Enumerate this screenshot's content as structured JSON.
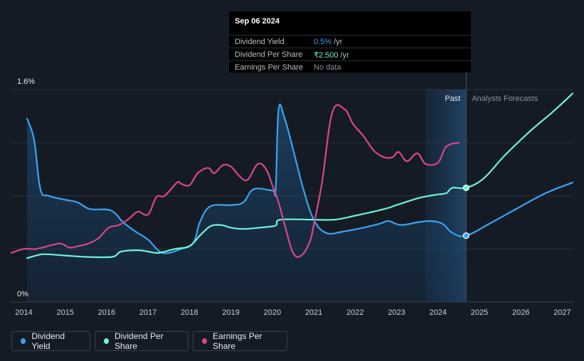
{
  "tooltip": {
    "date": "Sep 06 2024",
    "rows": [
      {
        "label": "Dividend Yield",
        "value": "0.5%",
        "unit": "/yr",
        "color": "#3ba2ef"
      },
      {
        "label": "Dividend Per Share",
        "value": "₹2.500",
        "unit": "/yr",
        "color": "#6ff2d6"
      },
      {
        "label": "Earnings Per Share",
        "value": "No data",
        "unit": "",
        "color": "#8a8f98"
      }
    ]
  },
  "zones": {
    "past": "Past",
    "forecast": "Analysts Forecasts"
  },
  "legend": [
    {
      "label": "Dividend Yield",
      "color": "#3ba2ef"
    },
    {
      "label": "Dividend Per Share",
      "color": "#6ff2d6"
    },
    {
      "label": "Earnings Per Share",
      "color": "#d9468a"
    }
  ],
  "chart_data": {
    "type": "line",
    "x_ticks": [
      "2014",
      "2015",
      "2016",
      "2017",
      "2018",
      "2019",
      "2020",
      "2021",
      "2022",
      "2023",
      "2024",
      "2025",
      "2026",
      "2027"
    ],
    "y_tick_labels": [
      "1.6%",
      "0%"
    ],
    "xlim": [
      2013.7,
      2027.25
    ],
    "ylim": [
      0,
      1.6
    ],
    "past_range": [
      2023.7,
      2024.68
    ],
    "forecast_start": 2024.68,
    "grid": true,
    "series": [
      {
        "name": "Dividend Yield",
        "color": "#3ba2ef",
        "area": true,
        "points": [
          [
            2014.08,
            1.38
          ],
          [
            2014.25,
            1.22
          ],
          [
            2014.4,
            0.85
          ],
          [
            2014.6,
            0.8
          ],
          [
            2015.0,
            0.77
          ],
          [
            2015.3,
            0.75
          ],
          [
            2015.6,
            0.7
          ],
          [
            2016.1,
            0.69
          ],
          [
            2016.4,
            0.6
          ],
          [
            2016.7,
            0.53
          ],
          [
            2017.0,
            0.47
          ],
          [
            2017.35,
            0.37
          ],
          [
            2017.8,
            0.4
          ],
          [
            2018.1,
            0.45
          ],
          [
            2018.25,
            0.6
          ],
          [
            2018.5,
            0.72
          ],
          [
            2019.0,
            0.73
          ],
          [
            2019.3,
            0.75
          ],
          [
            2019.55,
            0.85
          ],
          [
            2020.0,
            0.84
          ],
          [
            2020.08,
            0.85
          ],
          [
            2020.15,
            1.45
          ],
          [
            2020.3,
            1.38
          ],
          [
            2020.5,
            1.15
          ],
          [
            2020.75,
            0.85
          ],
          [
            2021.0,
            0.62
          ],
          [
            2021.3,
            0.52
          ],
          [
            2021.7,
            0.53
          ],
          [
            2022.2,
            0.56
          ],
          [
            2022.6,
            0.59
          ],
          [
            2022.8,
            0.61
          ],
          [
            2023.1,
            0.58
          ],
          [
            2023.5,
            0.6
          ],
          [
            2023.8,
            0.61
          ],
          [
            2024.1,
            0.59
          ],
          [
            2024.35,
            0.52
          ],
          [
            2024.68,
            0.5
          ],
          [
            2025.3,
            0.6
          ],
          [
            2026.0,
            0.72
          ],
          [
            2026.6,
            0.82
          ],
          [
            2027.25,
            0.9
          ]
        ]
      },
      {
        "name": "Dividend Per Share",
        "color": "#6ff2d6",
        "points": [
          [
            2014.08,
            0.33
          ],
          [
            2014.3,
            0.35
          ],
          [
            2014.5,
            0.36
          ],
          [
            2015.0,
            0.35
          ],
          [
            2015.5,
            0.34
          ],
          [
            2016.13,
            0.34
          ],
          [
            2016.35,
            0.38
          ],
          [
            2016.75,
            0.39
          ],
          [
            2017.0,
            0.38
          ],
          [
            2017.25,
            0.37
          ],
          [
            2017.65,
            0.4
          ],
          [
            2018.0,
            0.42
          ],
          [
            2018.25,
            0.5
          ],
          [
            2018.5,
            0.57
          ],
          [
            2018.75,
            0.58
          ],
          [
            2019.0,
            0.56
          ],
          [
            2019.3,
            0.55
          ],
          [
            2019.7,
            0.56
          ],
          [
            2020.0,
            0.57
          ],
          [
            2020.1,
            0.58
          ],
          [
            2020.2,
            0.62
          ],
          [
            2021.0,
            0.62
          ],
          [
            2021.5,
            0.62
          ],
          [
            2022.0,
            0.65
          ],
          [
            2022.7,
            0.7
          ],
          [
            2023.0,
            0.73
          ],
          [
            2023.5,
            0.78
          ],
          [
            2023.8,
            0.8
          ],
          [
            2024.0,
            0.81
          ],
          [
            2024.2,
            0.82
          ],
          [
            2024.35,
            0.86
          ],
          [
            2024.68,
            0.86
          ],
          [
            2025.1,
            0.93
          ],
          [
            2025.6,
            1.1
          ],
          [
            2026.2,
            1.28
          ],
          [
            2026.8,
            1.44
          ],
          [
            2027.25,
            1.57
          ]
        ]
      },
      {
        "name": "Earnings Per Share",
        "color": "#d9468a",
        "points": [
          [
            2013.7,
            0.37
          ],
          [
            2014.0,
            0.4
          ],
          [
            2014.3,
            0.4
          ],
          [
            2014.7,
            0.43
          ],
          [
            2014.9,
            0.44
          ],
          [
            2015.1,
            0.41
          ],
          [
            2015.3,
            0.42
          ],
          [
            2015.55,
            0.44
          ],
          [
            2015.8,
            0.48
          ],
          [
            2016.05,
            0.56
          ],
          [
            2016.3,
            0.58
          ],
          [
            2016.55,
            0.63
          ],
          [
            2016.75,
            0.68
          ],
          [
            2017.0,
            0.66
          ],
          [
            2017.2,
            0.79
          ],
          [
            2017.4,
            0.8
          ],
          [
            2017.7,
            0.9
          ],
          [
            2017.8,
            0.89
          ],
          [
            2018.0,
            0.88
          ],
          [
            2018.2,
            0.97
          ],
          [
            2018.45,
            1.01
          ],
          [
            2018.6,
            0.97
          ],
          [
            2018.8,
            1.03
          ],
          [
            2019.0,
            1.02
          ],
          [
            2019.2,
            0.95
          ],
          [
            2019.4,
            0.92
          ],
          [
            2019.65,
            1.04
          ],
          [
            2019.85,
            1.0
          ],
          [
            2020.0,
            0.88
          ],
          [
            2020.15,
            0.75
          ],
          [
            2020.3,
            0.58
          ],
          [
            2020.5,
            0.37
          ],
          [
            2020.7,
            0.35
          ],
          [
            2020.9,
            0.45
          ],
          [
            2021.0,
            0.58
          ],
          [
            2021.2,
            0.9
          ],
          [
            2021.45,
            1.43
          ],
          [
            2021.75,
            1.45
          ],
          [
            2021.95,
            1.34
          ],
          [
            2022.2,
            1.25
          ],
          [
            2022.45,
            1.14
          ],
          [
            2022.7,
            1.09
          ],
          [
            2022.9,
            1.09
          ],
          [
            2023.05,
            1.13
          ],
          [
            2023.25,
            1.06
          ],
          [
            2023.5,
            1.12
          ],
          [
            2023.7,
            1.04
          ],
          [
            2024.0,
            1.05
          ],
          [
            2024.2,
            1.17
          ],
          [
            2024.5,
            1.2
          ]
        ]
      }
    ],
    "markers": [
      {
        "series": "Dividend Per Share",
        "x": 2024.68,
        "y": 0.86
      },
      {
        "series": "Dividend Yield",
        "x": 2024.68,
        "y": 0.5
      }
    ]
  }
}
